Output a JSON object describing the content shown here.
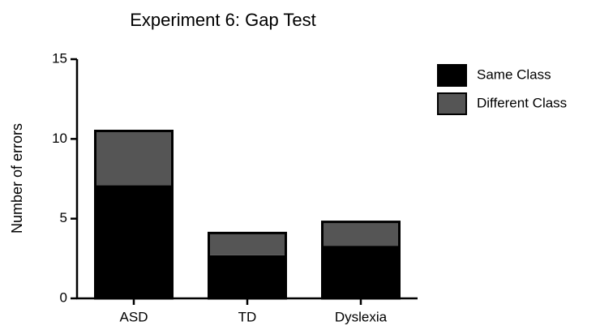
{
  "chart_data": {
    "type": "stacked_bar",
    "title": "Experiment 6: Gap Test",
    "ylabel": "Number of errors",
    "categories": [
      "ASD",
      "TD",
      "Dyslexia"
    ],
    "series": [
      {
        "name": "Same Class",
        "color": "#000000",
        "values": [
          7.1,
          2.7,
          3.3
        ]
      },
      {
        "name": "Different Class",
        "color": "#555555",
        "values": [
          3.4,
          1.4,
          1.5
        ]
      }
    ],
    "ylim": [
      0,
      15
    ],
    "yticks": [
      0,
      5,
      10,
      15
    ],
    "legend": "upper right"
  }
}
